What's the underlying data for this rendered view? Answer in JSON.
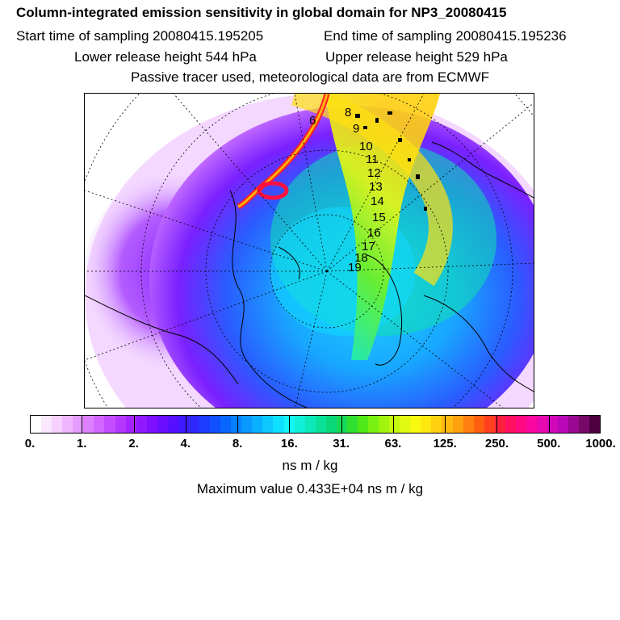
{
  "header": {
    "title": "Column-integrated emission sensitivity in global domain for NP3_20080415",
    "start_label": "Start time of sampling 20080415.195205",
    "end_label": "End time of sampling 20080415.195236",
    "lower_release": "Lower release height  544 hPa",
    "upper_release": "Upper release height  529 hPa",
    "tracer_info": "Passive tracer used, meteorological data are from ECMWF"
  },
  "map": {
    "trajectory_labels": [
      "6",
      "8",
      "9",
      "10",
      "11",
      "12",
      "13",
      "14",
      "15",
      "16",
      "17",
      "18",
      "19"
    ]
  },
  "colorbar": {
    "ticks": [
      "0.",
      "1.",
      "2.",
      "4.",
      "8.",
      "16.",
      "31.",
      "63.",
      "125.",
      "250.",
      "500.",
      "1000."
    ],
    "colors": [
      "#ffffff",
      "#fbe8ff",
      "#f6d0ff",
      "#efb6ff",
      "#e69bff",
      "#dd80ff",
      "#d266ff",
      "#c44dff",
      "#b437ff",
      "#a324ff",
      "#9118ff",
      "#7d10ff",
      "#6a0cff",
      "#5610ff",
      "#4119ff",
      "#2e28ff",
      "#1d3cff",
      "#1050ff",
      "#0866ff",
      "#0780ff",
      "#0898ff",
      "#0aafff",
      "#0cc8ff",
      "#10e0ff",
      "#14f5f5",
      "#10f0d8",
      "#0ce8b8",
      "#0ae098",
      "#0ad878",
      "#18d858",
      "#30e030",
      "#50e818",
      "#78f010",
      "#a0f410",
      "#c4f810",
      "#e0fa10",
      "#f8f810",
      "#ffe810",
      "#ffd010",
      "#ffb810",
      "#ffa010",
      "#ff8010",
      "#ff6010",
      "#ff4020",
      "#ff2040",
      "#ff1060",
      "#ff0880",
      "#f808a0",
      "#e808b0",
      "#d008b8",
      "#b808b8",
      "#980890",
      "#780868",
      "#500040"
    ],
    "unit": "ns m / kg",
    "max_value": "Maximum value  0.433E+04 ns m / kg"
  }
}
